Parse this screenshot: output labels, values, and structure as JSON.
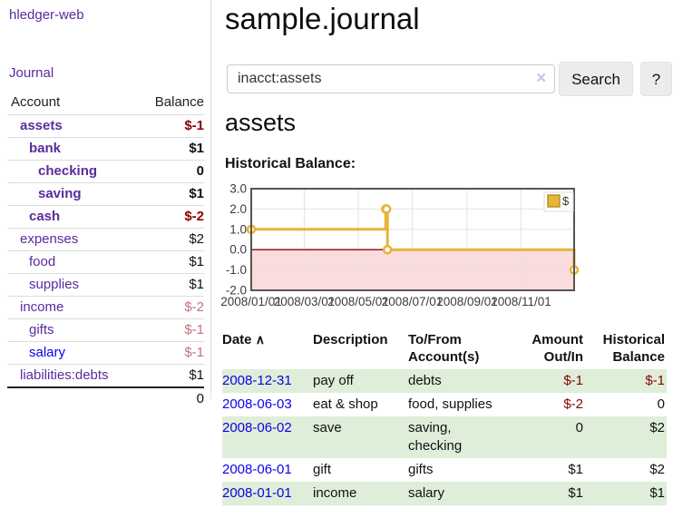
{
  "sidebar": {
    "brand": "hledger-web",
    "nav": {
      "journal": "Journal"
    },
    "accounts_table": {
      "headers": {
        "account": "Account",
        "balance": "Balance"
      },
      "rows": [
        {
          "name": "assets",
          "balance": "$-1"
        },
        {
          "name": "bank",
          "balance": "$1"
        },
        {
          "name": "checking",
          "balance": "0"
        },
        {
          "name": "saving",
          "balance": "$1"
        },
        {
          "name": "cash",
          "balance": "$-2"
        },
        {
          "name": "expenses",
          "balance": "$2"
        },
        {
          "name": "food",
          "balance": "$1"
        },
        {
          "name": "supplies",
          "balance": "$1"
        },
        {
          "name": "income",
          "balance": "$-2"
        },
        {
          "name": "gifts",
          "balance": "$-1"
        },
        {
          "name": "salary",
          "balance": "$-1"
        },
        {
          "name": "liabilities:debts",
          "balance": "$1"
        }
      ],
      "total": "0"
    }
  },
  "main": {
    "title": "sample.journal",
    "search": {
      "value": "inacct:assets",
      "clear_icon": "✕",
      "search_button": "Search",
      "help_button": "?"
    },
    "account_heading": "assets",
    "chart_label": "Historical Balance:",
    "register": {
      "headers": {
        "date": "Date",
        "sort_asc_icon": "∧",
        "description": "Description",
        "account_line1": "To/From",
        "account_line2": "Account(s)",
        "amount_line1": "Amount",
        "amount_line2": "Out/In",
        "balance_line1": "Historical",
        "balance_line2": "Balance"
      },
      "rows": [
        {
          "date": "2008-12-31",
          "description": "pay off",
          "accounts": "debts",
          "amount": "$-1",
          "balance": "$-1"
        },
        {
          "date": "2008-06-03",
          "description": "eat & shop",
          "accounts": "food, supplies",
          "amount": "$-2",
          "balance": "0"
        },
        {
          "date": "2008-06-02",
          "description": "save",
          "accounts": "saving, checking",
          "amount": "0",
          "balance": "$2"
        },
        {
          "date": "2008-06-01",
          "description": "gift",
          "accounts": "gifts",
          "amount": "$1",
          "balance": "$2"
        },
        {
          "date": "2008-01-01",
          "description": "income",
          "accounts": "salary",
          "amount": "$1",
          "balance": "$1"
        }
      ]
    }
  },
  "chart_data": {
    "type": "line",
    "title": "Historical Balance:",
    "series": [
      {
        "name": "$",
        "step": true,
        "color": "#e6b437",
        "marker_fill": "#ffffff",
        "points": [
          [
            "2008-01-01",
            1
          ],
          [
            "2008-06-01",
            2
          ],
          [
            "2008-06-02",
            2
          ],
          [
            "2008-06-03",
            0
          ],
          [
            "2008-12-31",
            -1
          ]
        ]
      }
    ],
    "x_range": [
      "2008-01-01",
      "2008-12-31"
    ],
    "ylim": [
      -2,
      3
    ],
    "y_ticks": [
      {
        "value": 3,
        "label": "3.0"
      },
      {
        "value": 2,
        "label": "2.0"
      },
      {
        "value": 1,
        "label": "1.0"
      },
      {
        "value": 0,
        "label": "0.0"
      },
      {
        "value": -1,
        "label": "-1.0"
      },
      {
        "value": -2,
        "label": "-2.0"
      }
    ],
    "x_ticks": [
      {
        "date": "2008-01-01",
        "label": "2008/01/01"
      },
      {
        "date": "2008-03-01",
        "label": "2008/03/01"
      },
      {
        "date": "2008-05-01",
        "label": "2008/05/01"
      },
      {
        "date": "2008-07-01",
        "label": "2008/07/01"
      },
      {
        "date": "2008-09-01",
        "label": "2008/09/01"
      },
      {
        "date": "2008-11-01",
        "label": "2008/11/01"
      }
    ],
    "grid": true,
    "legend_position": "top-right",
    "zero_line_color": "#8b0000",
    "negative_fill": "#fbdcdc"
  },
  "colors": {
    "link_purple": "#5a2b9d",
    "link_blue": "#0d00e8",
    "negative_strong": "#8b0000",
    "negative_soft": "#c4737d",
    "row_stripe_green": "#dfeed8",
    "series_yellow": "#e6b437",
    "chart_negative_fill": "#fbdcdc",
    "chart_zero_line": "#8b0000"
  }
}
